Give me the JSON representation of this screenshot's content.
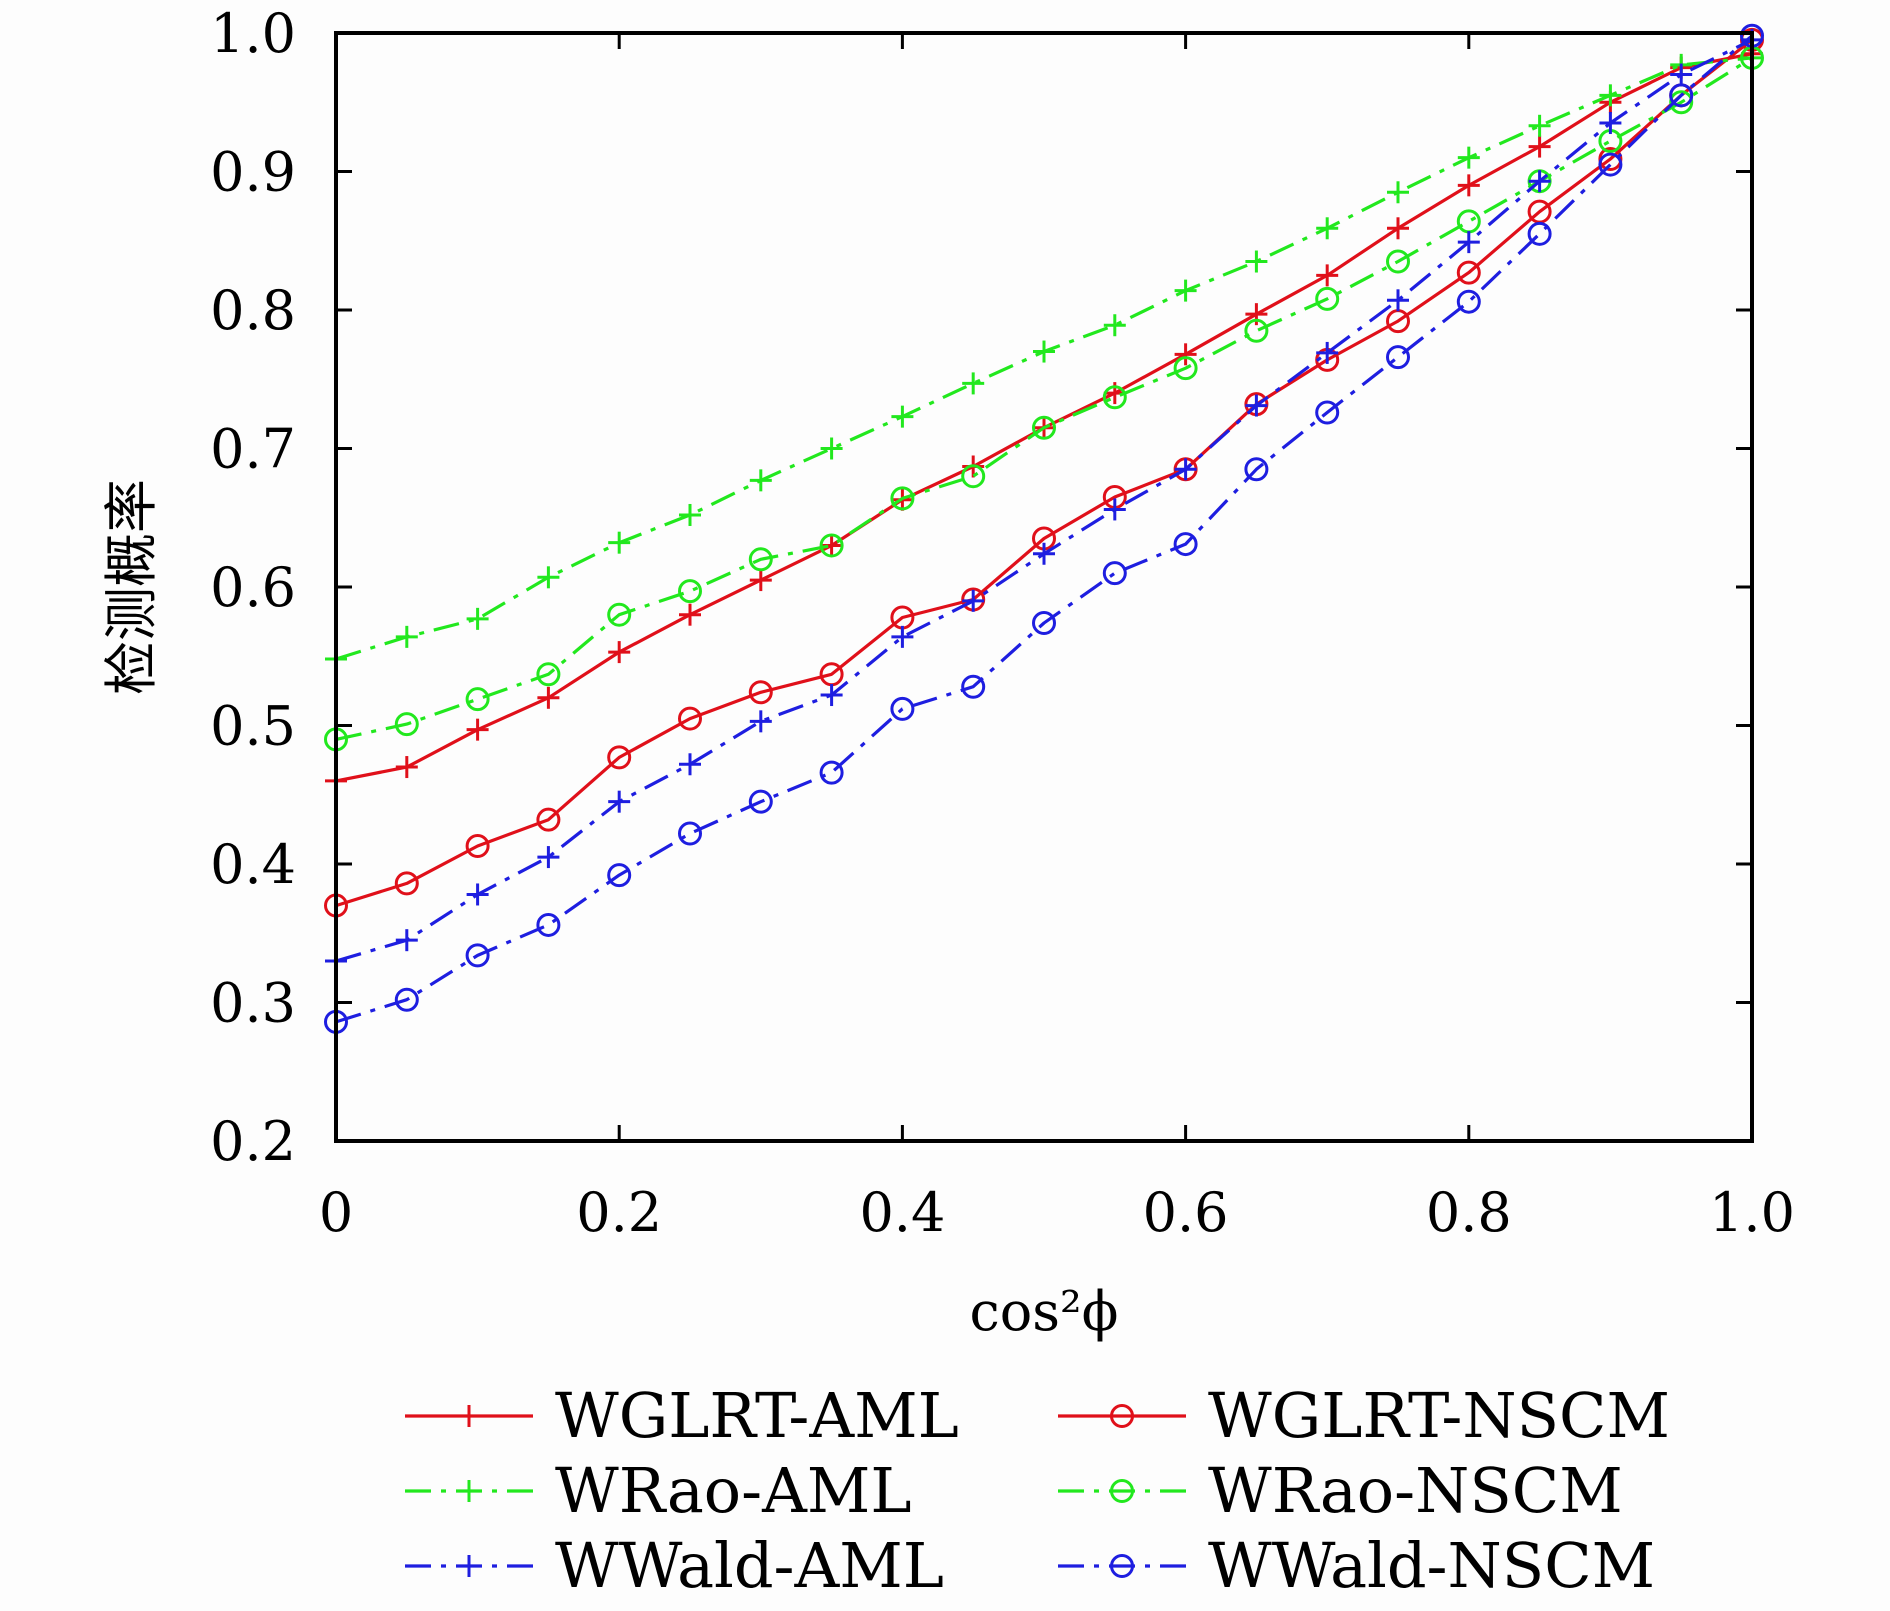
{
  "chart_data": {
    "type": "line",
    "title": "",
    "xlabel": "cos²ϕ",
    "ylabel": "检测概率",
    "xlim": [
      0,
      1.0
    ],
    "ylim": [
      0.2,
      1.0
    ],
    "x_ticks": [
      "0",
      "0.2",
      "0.4",
      "0.6",
      "0.8",
      "1.0"
    ],
    "y_ticks": [
      "0.2",
      "0.3",
      "0.4",
      "0.5",
      "0.6",
      "0.7",
      "0.8",
      "0.9",
      "1.0"
    ],
    "grid": false,
    "legend_position": "bottom",
    "x": [
      0,
      0.05,
      0.1,
      0.15,
      0.2,
      0.25,
      0.3,
      0.35,
      0.4,
      0.45,
      0.5,
      0.55,
      0.6,
      0.65,
      0.7,
      0.75,
      0.8,
      0.85,
      0.9,
      0.95,
      1.0
    ],
    "series": [
      {
        "name": "WGLRT-AML",
        "color": "#e0101a",
        "dash": "solid",
        "marker": "plus",
        "values": [
          0.46,
          0.47,
          0.497,
          0.52,
          0.553,
          0.58,
          0.605,
          0.63,
          0.663,
          0.687,
          0.715,
          0.74,
          0.768,
          0.797,
          0.825,
          0.859,
          0.89,
          0.918,
          0.95,
          0.975,
          0.985
        ]
      },
      {
        "name": "WGLRT-NSCM",
        "color": "#e0101a",
        "dash": "solid",
        "marker": "circle",
        "values": [
          0.37,
          0.386,
          0.413,
          0.432,
          0.477,
          0.505,
          0.524,
          0.537,
          0.578,
          0.591,
          0.635,
          0.665,
          0.685,
          0.732,
          0.764,
          0.792,
          0.827,
          0.871,
          0.909,
          0.955,
          0.995
        ]
      },
      {
        "name": "WRao-AML",
        "color": "#22e81e",
        "dash": "dashdot",
        "marker": "plus",
        "values": [
          0.548,
          0.564,
          0.577,
          0.607,
          0.632,
          0.652,
          0.677,
          0.7,
          0.723,
          0.747,
          0.77,
          0.789,
          0.814,
          0.835,
          0.859,
          0.885,
          0.91,
          0.933,
          0.955,
          0.977,
          0.982
        ]
      },
      {
        "name": "WRao-NSCM",
        "color": "#22e81e",
        "dash": "dashdot",
        "marker": "circle",
        "values": [
          0.49,
          0.501,
          0.519,
          0.537,
          0.58,
          0.597,
          0.62,
          0.63,
          0.664,
          0.68,
          0.715,
          0.737,
          0.758,
          0.785,
          0.808,
          0.835,
          0.864,
          0.893,
          0.922,
          0.95,
          0.982
        ]
      },
      {
        "name": "WWald-AML",
        "color": "#1e1ee0",
        "dash": "dashdot",
        "marker": "plus",
        "values": [
          0.33,
          0.345,
          0.378,
          0.405,
          0.445,
          0.472,
          0.503,
          0.522,
          0.564,
          0.59,
          0.624,
          0.656,
          0.685,
          0.731,
          0.769,
          0.807,
          0.849,
          0.893,
          0.935,
          0.97,
          0.995
        ]
      },
      {
        "name": "WWald-NSCM",
        "color": "#1e1ee0",
        "dash": "dashdot",
        "marker": "circle",
        "values": [
          0.286,
          0.302,
          0.334,
          0.356,
          0.392,
          0.422,
          0.445,
          0.466,
          0.512,
          0.528,
          0.574,
          0.61,
          0.631,
          0.685,
          0.726,
          0.766,
          0.806,
          0.855,
          0.905,
          0.955,
          0.998
        ]
      }
    ]
  }
}
